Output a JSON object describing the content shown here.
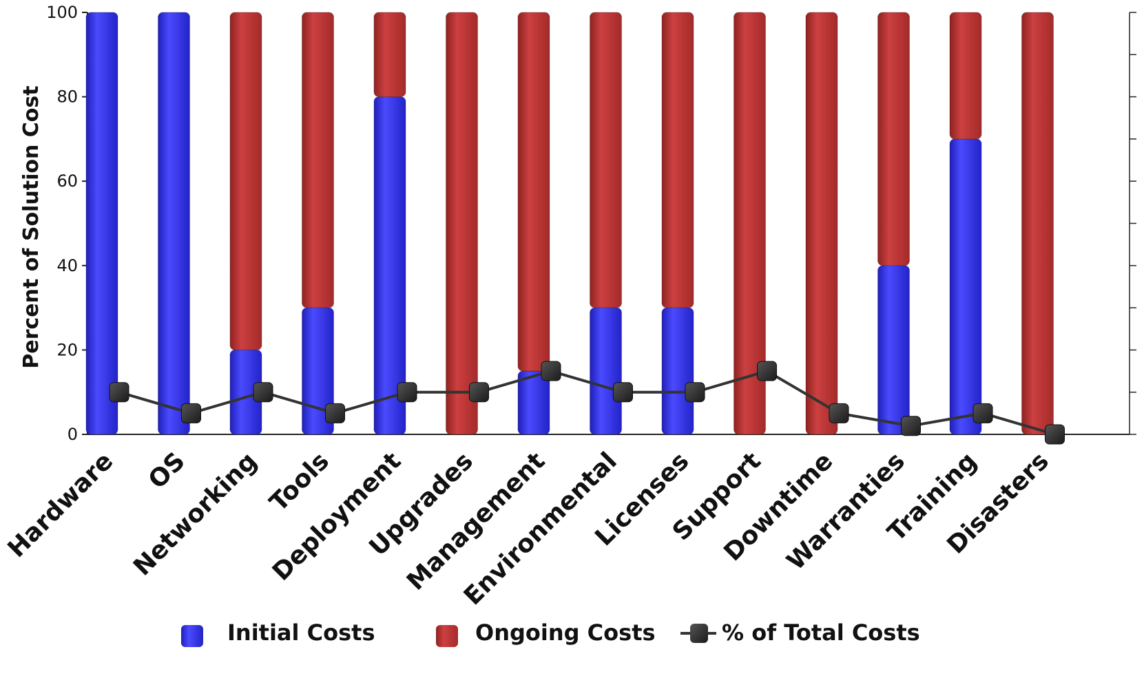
{
  "chart_data": {
    "type": "bar",
    "stacked": true,
    "categories": [
      "Hardware",
      "OS",
      "Networking",
      "Tools",
      "Deployment",
      "Upgrades",
      "Management",
      "Environmental",
      "Licenses",
      "Support",
      "Downtime",
      "Warranties",
      "Training",
      "Disasters"
    ],
    "series": [
      {
        "name": "Initial Costs",
        "kind": "bar",
        "color": "#2f2ff0",
        "values": [
          100,
          100,
          20,
          30,
          80,
          0,
          15,
          30,
          30,
          0,
          0,
          40,
          70,
          0
        ]
      },
      {
        "name": "Ongoing Costs",
        "kind": "bar",
        "color": "#c03434",
        "values": [
          0,
          0,
          80,
          70,
          20,
          100,
          85,
          70,
          70,
          100,
          100,
          60,
          30,
          100
        ]
      },
      {
        "name": "% of Total Costs",
        "kind": "line",
        "color": "#333333",
        "values": [
          10,
          5,
          10,
          5,
          10,
          10,
          15,
          10,
          10,
          15,
          5,
          2,
          5,
          0
        ]
      }
    ],
    "title": "",
    "xlabel": "",
    "ylabel": "Percent of Solution Cost",
    "ylim": [
      0,
      100
    ],
    "yticks": [
      0,
      20,
      40,
      60,
      80,
      100
    ],
    "legend_position": "bottom",
    "grid": false
  }
}
